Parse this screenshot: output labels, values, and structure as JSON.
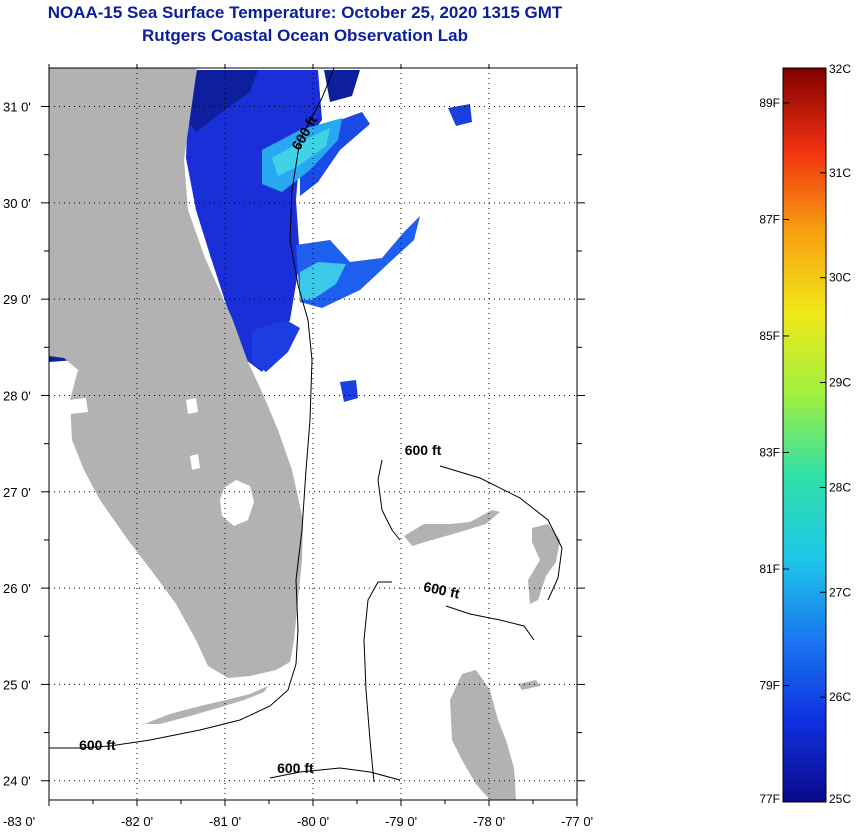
{
  "header": {
    "title": "NOAA-15 Sea Surface Temperature:  October 25, 2020 1315 GMT",
    "subtitle": "Rutgers Coastal Ocean Observation Lab"
  },
  "map": {
    "lon_range": [
      -83.0,
      -77.0
    ],
    "lat_range": [
      23.8,
      31.4
    ],
    "lon_ticks": [
      {
        "value": -83,
        "label": "-83 0'"
      },
      {
        "value": -82,
        "label": "-82 0'"
      },
      {
        "value": -81,
        "label": "-81 0'"
      },
      {
        "value": -80,
        "label": "-80 0'"
      },
      {
        "value": -79,
        "label": "-79 0'"
      },
      {
        "value": -78,
        "label": "-78 0'"
      },
      {
        "value": -77,
        "label": "-77 0'"
      }
    ],
    "lat_ticks": [
      {
        "value": 31,
        "label": "31 0'"
      },
      {
        "value": 30,
        "label": "30 0'"
      },
      {
        "value": 29,
        "label": "29 0'"
      },
      {
        "value": 28,
        "label": "28 0'"
      },
      {
        "value": 27,
        "label": "27 0'"
      },
      {
        "value": 26,
        "label": "26 0'"
      },
      {
        "value": 25,
        "label": "25 0'"
      },
      {
        "value": 24,
        "label": "24 0'"
      }
    ],
    "land_color": "#b2b2b2",
    "isobath_label": "600 ft",
    "isobath_labels": [
      {
        "text": "600 ft",
        "lon": -80.05,
        "lat": 30.7
      },
      {
        "text": "600 ft",
        "lon": -78.75,
        "lat": 27.38
      },
      {
        "text": "600 ft",
        "lon": -78.55,
        "lat": 25.93
      },
      {
        "text": "600 ft",
        "lon": -82.45,
        "lat": 24.32
      },
      {
        "text": "600 ft",
        "lon": -80.2,
        "lat": 24.08
      }
    ]
  },
  "colorbar": {
    "colors": [
      "#0a0a8a",
      "#1030e0",
      "#1a78f0",
      "#1ec8e8",
      "#30e0a8",
      "#a0f040",
      "#f0e818",
      "#f8a010",
      "#f03010",
      "#800000"
    ],
    "celsius": [
      "32C",
      "31C",
      "30C",
      "29C",
      "28C",
      "27C",
      "26C",
      "25C"
    ],
    "fahrenheit": [
      "89F",
      "87F",
      "85F",
      "83F",
      "81F",
      "79F",
      "77F"
    ],
    "celsius_values": [
      32,
      31,
      30,
      29,
      28,
      27,
      26,
      25
    ],
    "fahrenheit_values": [
      89,
      87,
      85,
      83,
      81,
      79,
      77
    ],
    "range_c": [
      25,
      32
    ]
  }
}
